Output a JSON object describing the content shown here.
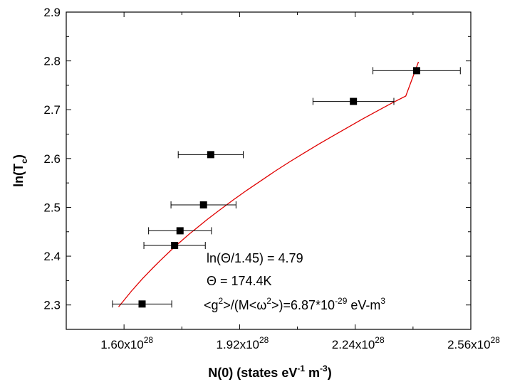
{
  "chart_data": {
    "type": "scatter",
    "title": "",
    "xlabel": "N(0) (states eV",
    "xlabel_sup1": "-1",
    "xlabel_mid": " m",
    "xlabel_sup2": "-3",
    "xlabel_end": ")",
    "ylabel": "ln(T",
    "ylabel_sub": "c",
    "ylabel_end": ")",
    "xlim": [
      1.44e+28,
      2.56e+28
    ],
    "ylim": [
      2.25,
      2.9
    ],
    "x_ticks": [
      1.6e+28,
      1.92e+28,
      2.24e+28,
      2.56e+28
    ],
    "x_tick_labels": [
      {
        "mant": "1.60x10",
        "exp": "28"
      },
      {
        "mant": "1.92x10",
        "exp": "28"
      },
      {
        "mant": "2.24x10",
        "exp": "28"
      },
      {
        "mant": "2.56x10",
        "exp": "28"
      }
    ],
    "y_ticks": [
      2.3,
      2.4,
      2.5,
      2.6,
      2.7,
      2.8,
      2.9
    ],
    "y_tick_labels": [
      "2.3",
      "2.4",
      "2.5",
      "2.6",
      "2.7",
      "2.8",
      "2.9"
    ],
    "grid": false,
    "series": [
      {
        "marker": "square",
        "color": "#000000",
        "points": [
          {
            "x": 1.65e+28,
            "y": 2.302,
            "xerr": 8.2e+26
          },
          {
            "x": 1.74e+28,
            "y": 2.422,
            "xerr": 8.5e+26
          },
          {
            "x": 1.755e+28,
            "y": 2.452,
            "xerr": 8.7e+26
          },
          {
            "x": 1.82e+28,
            "y": 2.505,
            "xerr": 9e+26
          },
          {
            "x": 1.84e+28,
            "y": 2.608,
            "xerr": 9e+26
          },
          {
            "x": 2.235e+28,
            "y": 2.717,
            "xerr": 1.12e+27
          },
          {
            "x": 2.41e+28,
            "y": 2.78,
            "xerr": 1.21e+27
          }
        ]
      },
      {
        "type": "line",
        "color": "#e00000",
        "x": [
          1.585e+28,
          1.62e+28,
          1.65e+28,
          1.68e+28,
          1.7e+28,
          1.72e+28,
          1.74e+28,
          1.76e+28,
          1.78e+28,
          1.8e+28,
          1.83e+28,
          1.86e+28,
          1.9e+28,
          1.94e+28,
          1.98e+28,
          2.02e+28,
          2.06e+28,
          2.1e+28,
          2.14e+28,
          2.18e+28,
          2.22e+28,
          2.26e+28,
          2.3e+28,
          2.34e+28,
          2.38e+28,
          2.415e+28
        ],
        "y": [
          2.296,
          2.328,
          2.353,
          2.376,
          2.391,
          2.405,
          2.419,
          2.432,
          2.445,
          2.457,
          2.475,
          2.492,
          2.514,
          2.535,
          2.555,
          2.575,
          2.594,
          2.612,
          2.63,
          2.647,
          2.664,
          2.681,
          2.697,
          2.713,
          2.728,
          2.798
        ]
      }
    ],
    "annotations": [
      {
        "text": "ln(Θ/1.45) = 4.79"
      },
      {
        "text": "Θ = 174.4K"
      },
      {
        "pre": "<g",
        "sup1": "2",
        "mid": ">/(M<ω",
        "sup2": "2",
        "mid2": ">)=6.87*10",
        "sup3": "-29",
        "mid3": " eV-m",
        "sup4": "3"
      }
    ]
  }
}
